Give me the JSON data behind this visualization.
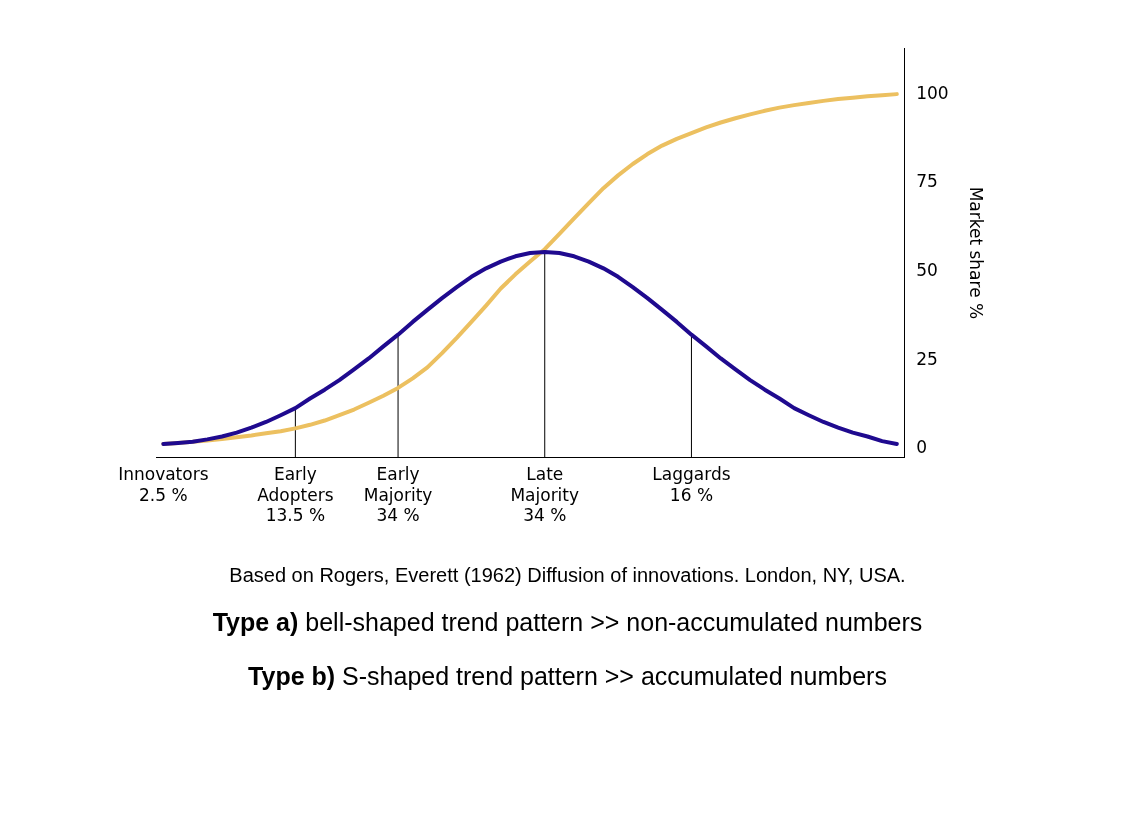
{
  "chart_data": {
    "type": "line",
    "ylabel": "Market share %",
    "ylim": [
      -2.5,
      113
    ],
    "yticks": [
      0,
      25,
      50,
      75,
      100
    ],
    "grid": false,
    "legend": false,
    "marker": "none",
    "line_style": "solid",
    "categories": [
      "Innovators\n2.5 %",
      null,
      null,
      null,
      null,
      null,
      null,
      null,
      null,
      "Early\nAdopters\n13.5 %",
      null,
      null,
      null,
      null,
      null,
      null,
      "Early\nMajority\n34 %",
      null,
      null,
      null,
      null,
      null,
      null,
      null,
      null,
      null,
      "Late\nMajority\n34 %",
      null,
      null,
      null,
      null,
      null,
      null,
      null,
      null,
      null,
      "Laggards\n16 %",
      null,
      null,
      null,
      null,
      null,
      null,
      null,
      null,
      null,
      null,
      null,
      null,
      null,
      null
    ],
    "series": [
      {
        "color": "#1f0a8f",
        "values": [
          1.4,
          1.7,
          2,
          2.7,
          3.5,
          4.6,
          6,
          7.6,
          9.5,
          11.5,
          14.2,
          16.7,
          19.4,
          22.4,
          25.5,
          28.9,
          32.2,
          35.8,
          39.2,
          42.5,
          45.6,
          48.5,
          50.9,
          52.8,
          54.3,
          55.2,
          55.5,
          55.2,
          54.3,
          52.8,
          50.9,
          48.5,
          45.6,
          42.5,
          39.2,
          35.8,
          32.2,
          28.9,
          25.5,
          22.4,
          19.4,
          16.7,
          14.2,
          11.5,
          9.5,
          7.6,
          6,
          4.6,
          3.5,
          2.2,
          1.4
        ]
      },
      {
        "color": "#ecc060",
        "values": [
          1.4,
          1.7,
          2,
          2.4,
          2.8,
          3.3,
          3.8,
          4.4,
          5,
          5.8,
          6.8,
          8,
          9.5,
          11.1,
          13,
          15,
          17.2,
          19.9,
          23,
          27,
          31.3,
          35.8,
          40.4,
          45.2,
          49.2,
          52.8,
          56.3,
          60.6,
          65,
          69.3,
          73.5,
          77.1,
          80.3,
          83.1,
          85.5,
          87.4,
          89,
          90.6,
          92,
          93.2,
          94.3,
          95.3,
          96.2,
          96.9,
          97.5,
          98.1,
          98.6,
          99,
          99.4,
          99.7,
          100
        ]
      }
    ],
    "ref_lines": [
      {
        "axis": "x",
        "value": "Early\nAdopters\n13.5 %"
      },
      {
        "axis": "x",
        "value": "Early\nMajority\n34 %"
      },
      {
        "axis": "x",
        "value": "Late\nMajority\n34 %"
      },
      {
        "axis": "x",
        "value": "Laggards\n16 %"
      }
    ],
    "annotations": [
      "Based on Rogers, Everett (1962) Diffusion of innovations. London, NY, USA.",
      "Type a) bell-shaped trend pattern >> non-accumulated numbers",
      "Type b) S-shaped trend pattern >> accumulated numbers"
    ]
  }
}
